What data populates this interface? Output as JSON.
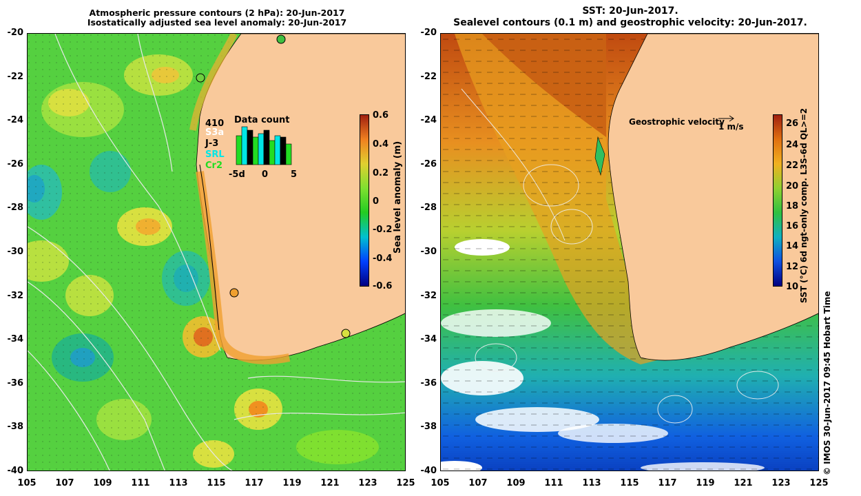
{
  "left_panel": {
    "title_line1": "Atmospheric pressure contours (2 hPa): 20-Jun-2017",
    "title_line2": "Isostatically adjusted sea level anomaly: 20-Jun-2017",
    "colorbar_label": "Sea level anomaly (m)",
    "colorbar_ticks": [
      "0.6",
      "0.4",
      "0.2",
      "0",
      "-0.2",
      "-0.4",
      "-0.6"
    ],
    "data_count": {
      "title": "Data count",
      "missions": [
        "410",
        "S3a",
        "J-3",
        "SRL",
        "Cr2"
      ],
      "mission_colors": [
        "#000000",
        "#ffffff",
        "#000000",
        "#00e6e6",
        "#22dd22"
      ],
      "x_ticks": [
        "-5d",
        "0",
        "5"
      ]
    }
  },
  "right_panel": {
    "title_line1": "SST: 20-Jun-2017.",
    "title_line2": "Sealevel contours (0.1 m) and geostrophic velocity: 20-Jun-2017.",
    "legend_text": "Geostrophic velocity",
    "legend_scale": "1 m/s",
    "colorbar_label": "SST (°C) 6d ngt-only comp. L3S-6d QL>=2",
    "colorbar_ticks": [
      "26",
      "24",
      "22",
      "20",
      "18",
      "16",
      "14",
      "12",
      "10"
    ]
  },
  "y_axis_ticks": [
    "-20",
    "-22",
    "-24",
    "-26",
    "-28",
    "-30",
    "-32",
    "-34",
    "-36",
    "-38",
    "-40"
  ],
  "x_axis_ticks": [
    "105",
    "107",
    "109",
    "111",
    "113",
    "115",
    "117",
    "119",
    "121",
    "123",
    "125"
  ],
  "credit": "© IMOS 30-Jun-2017 09:45 Hobart Time",
  "colors": {
    "land": "#f9c99b",
    "sla_scale": [
      "#000080",
      "#0040ff",
      "#00c0d0",
      "#22cc22",
      "#7fe030",
      "#e0d030",
      "#f08020",
      "#b03010"
    ],
    "sst_scale": [
      "#000080",
      "#1050e0",
      "#10b0c0",
      "#30c040",
      "#90d030",
      "#f0b020",
      "#e07010",
      "#a02010"
    ]
  }
}
